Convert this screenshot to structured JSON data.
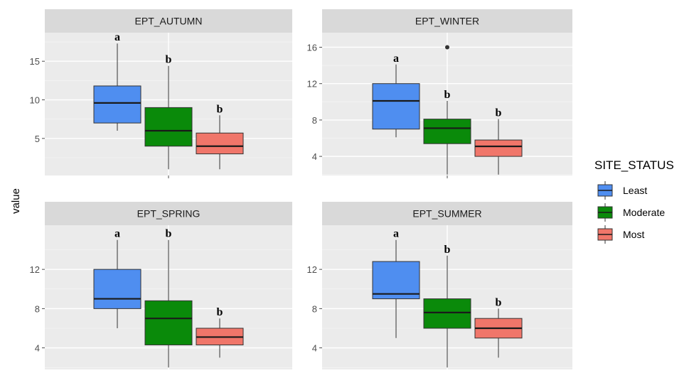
{
  "chart_data": {
    "type": "boxplot",
    "ylabel": "value",
    "legend": {
      "title": "SITE_STATUS",
      "position": "right",
      "entries": [
        {
          "name": "Least",
          "color": "#4f8ef0"
        },
        {
          "name": "Moderate",
          "color": "#0a8a0a"
        },
        {
          "name": "Most",
          "color": "#f0766a"
        }
      ]
    },
    "grid": true,
    "panels": [
      {
        "title": "EPT_AUTUMN",
        "ylim": [
          0.2,
          18.7
        ],
        "yticks": [
          5,
          10,
          15
        ],
        "boxes": [
          {
            "group": "Least",
            "min": 6,
            "q1": 7,
            "median": 9.6,
            "q3": 11.8,
            "max": 17.3,
            "outliers": [],
            "letter": "a"
          },
          {
            "group": "Moderate",
            "min": 1,
            "q1": 4,
            "median": 6,
            "q3": 9,
            "max": 14.4,
            "outliers": [],
            "letter": "b"
          },
          {
            "group": "Most",
            "min": 1,
            "q1": 3,
            "median": 4,
            "q3": 5.7,
            "max": 8,
            "outliers": [],
            "letter": "b"
          }
        ]
      },
      {
        "title": "EPT_WINTER",
        "ylim": [
          1.9,
          17.6
        ],
        "yticks": [
          4,
          8,
          12,
          16
        ],
        "boxes": [
          {
            "group": "Least",
            "min": 6.1,
            "q1": 7,
            "median": 10.1,
            "q3": 12,
            "max": 14.1,
            "outliers": [],
            "letter": "a"
          },
          {
            "group": "Moderate",
            "min": 2,
            "q1": 5.4,
            "median": 7.1,
            "q3": 8.1,
            "max": 10.1,
            "outliers": [
              16
            ],
            "letter": "b"
          },
          {
            "group": "Most",
            "min": 2,
            "q1": 4,
            "median": 5.1,
            "q3": 5.8,
            "max": 8.1,
            "outliers": [],
            "letter": "b"
          }
        ]
      },
      {
        "title": "EPT_SPRING",
        "ylim": [
          1.8,
          16.5
        ],
        "yticks": [
          4,
          8,
          12
        ],
        "boxes": [
          {
            "group": "Least",
            "min": 6,
            "q1": 8,
            "median": 9,
            "q3": 12,
            "max": 15,
            "outliers": [],
            "letter": "a"
          },
          {
            "group": "Moderate",
            "min": 2,
            "q1": 4.3,
            "median": 7,
            "q3": 8.8,
            "max": 15,
            "outliers": [],
            "letter": "b"
          },
          {
            "group": "Most",
            "min": 3,
            "q1": 4.3,
            "median": 5.1,
            "q3": 6,
            "max": 7,
            "outliers": [],
            "letter": "b"
          }
        ]
      },
      {
        "title": "EPT_SUMMER",
        "ylim": [
          1.8,
          16.5
        ],
        "yticks": [
          4,
          8,
          12
        ],
        "boxes": [
          {
            "group": "Least",
            "min": 5,
            "q1": 9,
            "median": 9.5,
            "q3": 12.8,
            "max": 15,
            "outliers": [],
            "letter": "a"
          },
          {
            "group": "Moderate",
            "min": 2,
            "q1": 6,
            "median": 7.6,
            "q3": 9,
            "max": 13.4,
            "outliers": [],
            "letter": "b"
          },
          {
            "group": "Most",
            "min": 3,
            "q1": 5,
            "median": 6,
            "q3": 7,
            "max": 8,
            "outliers": [],
            "letter": "b"
          }
        ]
      }
    ]
  }
}
